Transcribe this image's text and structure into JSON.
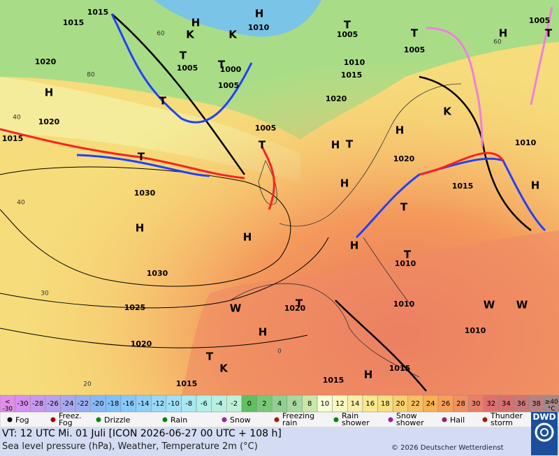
{
  "map": {
    "pressure_labels": [
      "1015",
      "1015",
      "1020",
      "1020",
      "1015",
      "1005",
      "1000",
      "1005",
      "1010",
      "1005",
      "1010",
      "1015",
      "1020",
      "1005",
      "1005",
      "1010",
      "1030",
      "1030",
      "1025",
      "1020",
      "1015",
      "1015",
      "1015",
      "1020",
      "1015",
      "1010",
      "1010",
      "1010",
      "1020",
      "1005"
    ],
    "systems": [
      "H",
      "H",
      "H",
      "H",
      "H",
      "H",
      "H",
      "H",
      "H",
      "H",
      "H",
      "H",
      "H",
      "T",
      "T",
      "T",
      "T",
      "T",
      "T",
      "T",
      "T",
      "T",
      "T",
      "T",
      "T",
      "T",
      "K",
      "K",
      "K",
      "K",
      "W",
      "W",
      "W"
    ],
    "temp_labels": [
      "60",
      "80",
      "40",
      "30",
      "20",
      "0",
      "60",
      "40"
    ]
  },
  "temperature_scale": {
    "labels": [
      "<\n-30",
      "-30",
      "-28",
      "-26",
      "-24",
      "-22",
      "-20",
      "-18",
      "-16",
      "-14",
      "-12",
      "-10",
      "-8",
      "-6",
      "-4",
      "-2",
      "0",
      "2",
      "4",
      "6",
      "8",
      "10",
      "12",
      "14",
      "16",
      "18",
      "20",
      "22",
      "24",
      "26",
      "28",
      "30",
      "32",
      "34",
      "36",
      "38",
      "≥40\n°C"
    ],
    "colors": [
      "#e08ee8",
      "#d890f0",
      "#c898f0",
      "#b8a0f0",
      "#a8a8f0",
      "#98b0f0",
      "#88b8f8",
      "#80c0f8",
      "#88c8f8",
      "#90d0f8",
      "#98d8f8",
      "#a0e0f8",
      "#a8e8f0",
      "#b0f0e8",
      "#b8f0e0",
      "#c0f0d8",
      "#60c060",
      "#78c878",
      "#90d090",
      "#a8d8a0",
      "#c8e8a8",
      "#f8fcd8",
      "#f8f8c0",
      "#f8f0a8",
      "#f8e890",
      "#f8e080",
      "#f8d070",
      "#f8c060",
      "#f8b050",
      "#f8a058",
      "#f09060",
      "#e88068",
      "#e07070",
      "#d87070",
      "#c87878",
      "#b88080",
      "#a88888"
    ]
  },
  "weather_legend": [
    "Fog",
    "Freez.\nFog",
    "Drizzle",
    "Rain",
    "Snow",
    "Freezing\nrain",
    "Rain\nshower",
    "Snow\nshower",
    "Hail",
    "Thunder\nstorm"
  ],
  "footer": {
    "valid_time": "VT: 12 UTC Mi.  01 Juli [ICON 2026-06-27  00 UTC + 108 h]",
    "description": "Sea level pressure (hPa), Weather, Temperature 2m (°C)",
    "copyright": "© 2026 Deutscher Wetterdienst",
    "logo": "DWD"
  }
}
